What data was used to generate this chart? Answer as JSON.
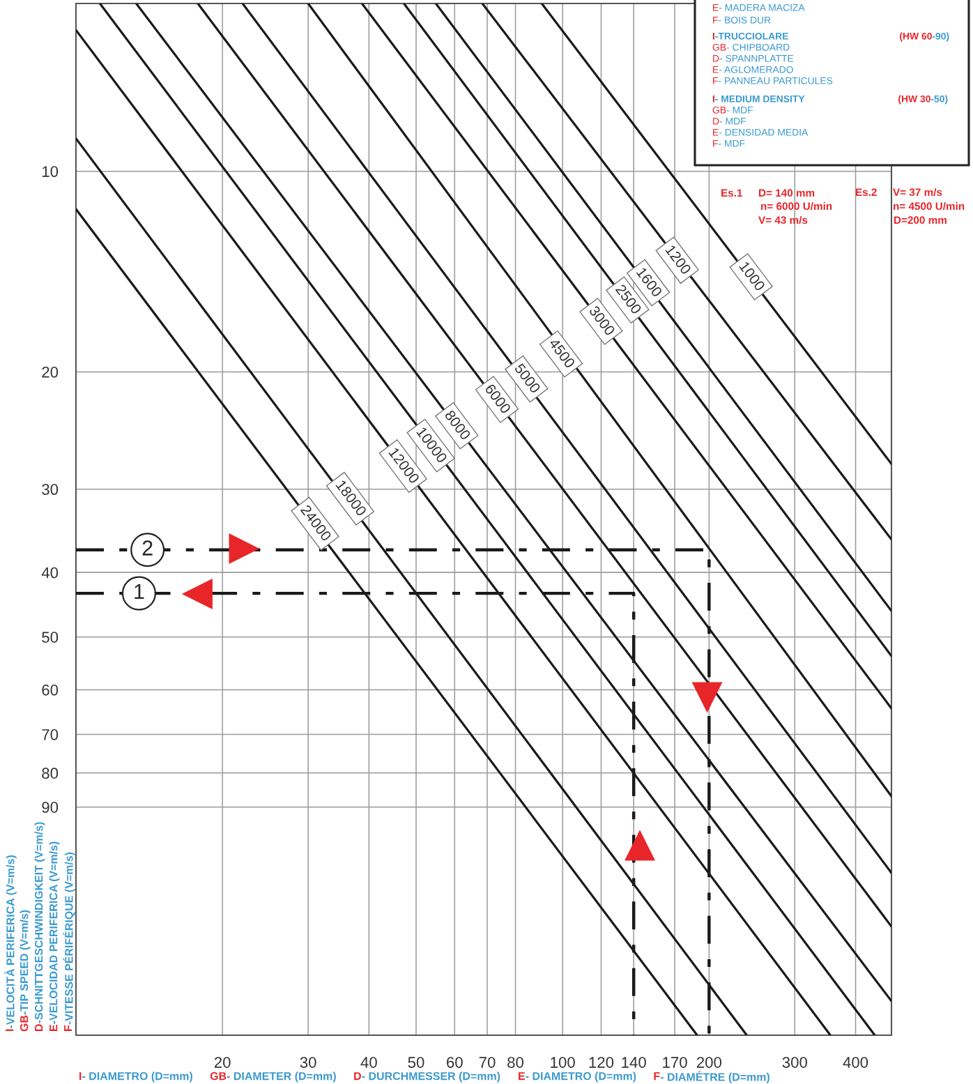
{
  "chart_data": {
    "type": "line",
    "log": "xy",
    "grid": true,
    "marker": "none",
    "xlim": [
      10,
      474
    ],
    "ylim": [
      198,
      5.6
    ],
    "xticks": [
      20,
      30,
      40,
      50,
      60,
      70,
      80,
      100,
      120,
      140,
      170,
      200,
      300,
      400
    ],
    "yticks": [
      10,
      20,
      30,
      40,
      50,
      60,
      70,
      80,
      90
    ],
    "xlabel": "I- DIAMETRO (D=mm)   GB- DIAMETER (D=mm)   D- DURCHMESSER (D=mm)   E- DIAMETRO (D=mm)   F- DIAMÉTRE (D=mm)",
    "ylabel": "I-VELOCITÀ PERIFERICA (V=m/s)\nGB-TIP SPEED (V=m/s)\nD-SCHNITTGESCHWINDIGKEIT (V=m/s)\nE-VELOCIDAD PERIFERICA (V=m/s)\nF-VITESSE PÉRIFÉRIQUE (V=m/s)",
    "series": [
      {
        "color": "#1a1a1a",
        "line_style": "solid",
        "x": [
          10,
          189
        ],
        "values": [
          11.4,
          198
        ]
      },
      {
        "color": "#1a1a1a",
        "line_style": "solid",
        "x": [
          10,
          239
        ],
        "values": [
          8.93,
          198
        ]
      },
      {
        "color": "#1a1a1a",
        "line_style": "solid",
        "x": [
          10,
          355
        ],
        "values": [
          6.14,
          198
        ]
      },
      {
        "color": "#1a1a1a",
        "line_style": "solid",
        "x": [
          11.2,
          438
        ],
        "values": [
          5.6,
          198
        ]
      },
      {
        "color": "#1a1a1a",
        "line_style": "solid",
        "x": [
          13.3,
          474
        ],
        "values": [
          5.6,
          176
        ]
      },
      {
        "color": "#1a1a1a",
        "line_style": "solid",
        "x": [
          17.8,
          474
        ],
        "values": [
          5.6,
          136
        ]
      },
      {
        "color": "#1a1a1a",
        "line_style": "solid",
        "x": [
          22.0,
          474
        ],
        "values": [
          5.6,
          113
        ]
      },
      {
        "color": "#1a1a1a",
        "line_style": "solid",
        "x": [
          30.0,
          474
        ],
        "values": [
          5.6,
          86.7
        ]
      },
      {
        "color": "#1a1a1a",
        "line_style": "solid",
        "x": [
          38.7,
          474
        ],
        "values": [
          5.6,
          64.0
        ]
      },
      {
        "color": "#1a1a1a",
        "line_style": "solid",
        "x": [
          47.2,
          474
        ],
        "values": [
          5.6,
          53.4
        ]
      },
      {
        "color": "#1a1a1a",
        "line_style": "solid",
        "x": [
          54.9,
          474
        ],
        "values": [
          5.6,
          45.7
        ]
      },
      {
        "color": "#1a1a1a",
        "line_style": "solid",
        "x": [
          68.4,
          474
        ],
        "values": [
          5.6,
          35.7
        ]
      },
      {
        "color": "#1a1a1a",
        "line_style": "solid",
        "x": [
          90.6,
          474
        ],
        "values": [
          5.6,
          27.5
        ]
      },
      {
        "name": "2",
        "color": "#1a1a1a",
        "line_style": "dashed",
        "x": [
          10,
          200,
          200
        ],
        "values": [
          37,
          37,
          198
        ]
      },
      {
        "name": "1",
        "color": "#1a1a1a",
        "line_style": "dashed",
        "x": [
          10,
          140,
          140
        ],
        "values": [
          43,
          43,
          198
        ]
      }
    ],
    "annotations": [
      "E- MADERA MACIZA",
      "F- BOIS DUR",
      "I-TRUCCIOLARE",
      "(HW 60-90)",
      "GB- CHIPBOARD",
      "D- SPANNPLATTE",
      "E- AGLOMERADO",
      "F- PANNEAU PARTICULES",
      "I- MEDIUM DENSITY",
      "(HW 30-50)",
      "GB- MDF",
      "D- MDF",
      "E- DENSIDAD MEDIA",
      "F- MDF",
      "Es.1",
      "D= 140 mm",
      "n= 6000 U/min",
      "V= 43 m/s",
      "Es.2",
      "V= 37 m/s",
      "n= 4500 U/min",
      "D=200 mm",
      {
        "text": "24000",
        "x": 31.0,
        "y": 33.8
      },
      {
        "text": "18000",
        "x": 36.6,
        "y": 31.0
      },
      {
        "text": "12000",
        "x": 47.0,
        "y": 27.7
      },
      {
        "text": "10000",
        "x": 53.6,
        "y": 25.8
      },
      {
        "text": "8000",
        "x": 60.6,
        "y": 24.1
      },
      {
        "text": "6000",
        "x": 73.3,
        "y": 22.0
      },
      {
        "text": "5000",
        "x": 84.3,
        "y": 20.5
      },
      {
        "text": "4500",
        "x": 99.3,
        "y": 18.8
      },
      {
        "text": "3000",
        "x": 120,
        "y": 16.8
      },
      {
        "text": "2500",
        "x": 136,
        "y": 15.6
      },
      {
        "text": "1600",
        "x": 150,
        "y": 14.7
      },
      {
        "text": "1200",
        "x": 172,
        "y": 13.6
      },
      {
        "text": "1000",
        "x": 244,
        "y": 14.4
      }
    ]
  }
}
